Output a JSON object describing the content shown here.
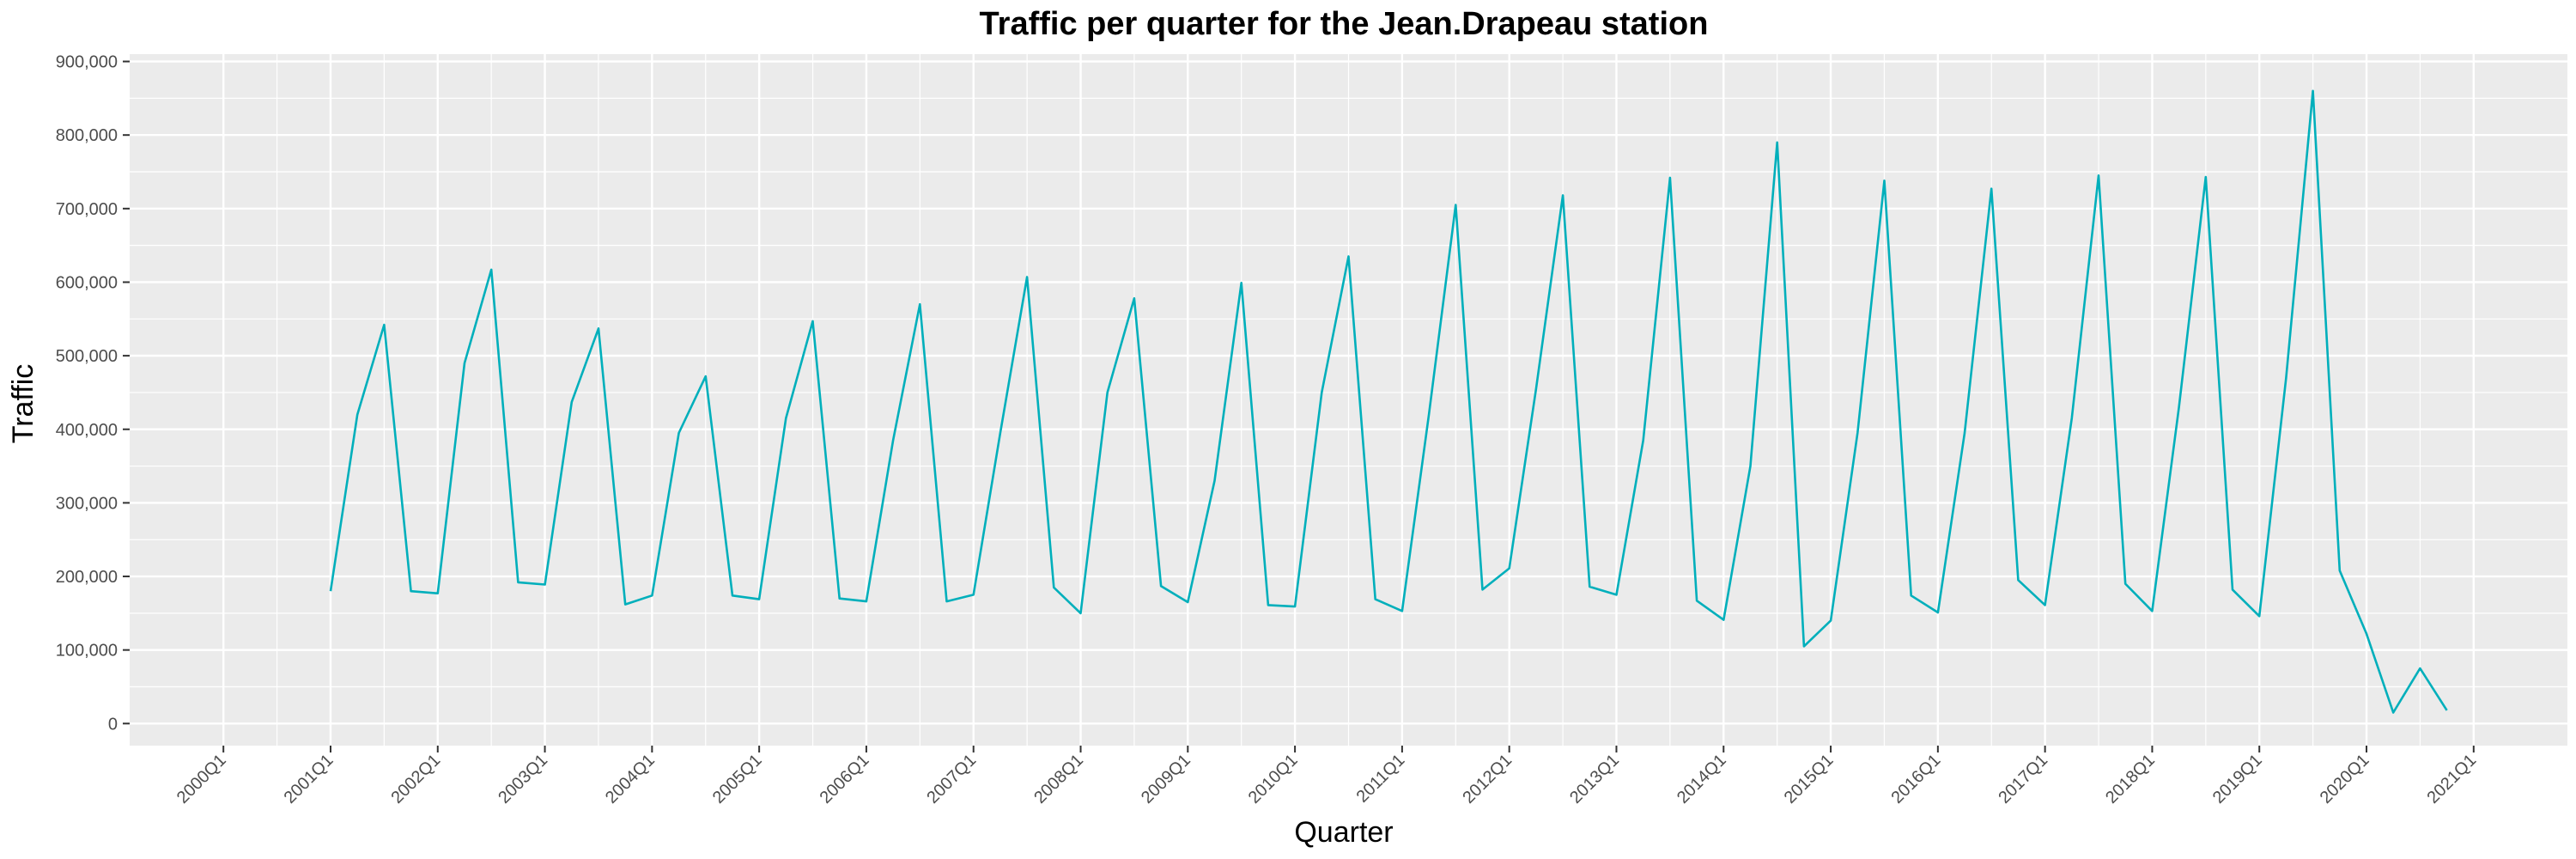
{
  "chart_data": {
    "type": "line",
    "title": "Traffic per quarter for the Jean.Drapeau station",
    "xlabel": "Quarter",
    "ylabel": "Traffic",
    "ylim": [
      -30000,
      910000
    ],
    "y_ticks": [
      0,
      100000,
      200000,
      300000,
      400000,
      500000,
      600000,
      700000,
      800000,
      900000
    ],
    "y_tick_labels": [
      "0",
      "100,000",
      "200,000",
      "300,000",
      "400,000",
      "500,000",
      "600,000",
      "700,000",
      "800,000",
      "900,000"
    ],
    "x_tick_labels": [
      "2000Q1",
      "2001Q1",
      "2002Q1",
      "2003Q1",
      "2004Q1",
      "2005Q1",
      "2006Q1",
      "2007Q1",
      "2008Q1",
      "2009Q1",
      "2010Q1",
      "2011Q1",
      "2012Q1",
      "2013Q1",
      "2014Q1",
      "2015Q1",
      "2016Q1",
      "2017Q1",
      "2018Q1",
      "2019Q1",
      "2020Q1",
      "2021Q1"
    ],
    "grid": true,
    "series_color": "#00AFBB",
    "panel_background": "#EBEBEB",
    "grid_color": "#FFFFFF",
    "series": [
      {
        "x": [
          "2001Q1",
          "2001Q2",
          "2001Q3",
          "2001Q4",
          "2002Q1",
          "2002Q2",
          "2002Q3",
          "2002Q4",
          "2003Q1",
          "2003Q2",
          "2003Q3",
          "2003Q4",
          "2004Q1",
          "2004Q2",
          "2004Q3",
          "2004Q4",
          "2005Q1",
          "2005Q2",
          "2005Q3",
          "2005Q4",
          "2006Q1",
          "2006Q2",
          "2006Q3",
          "2006Q4",
          "2007Q1",
          "2007Q2",
          "2007Q3",
          "2007Q4",
          "2008Q1",
          "2008Q2",
          "2008Q3",
          "2008Q4",
          "2009Q1",
          "2009Q2",
          "2009Q3",
          "2009Q4",
          "2010Q1",
          "2010Q2",
          "2010Q3",
          "2010Q4",
          "2011Q1",
          "2011Q2",
          "2011Q3",
          "2011Q4",
          "2012Q1",
          "2012Q2",
          "2012Q3",
          "2012Q4",
          "2013Q1",
          "2013Q2",
          "2013Q3",
          "2013Q4",
          "2014Q1",
          "2014Q2",
          "2014Q3",
          "2014Q4",
          "2015Q1",
          "2015Q2",
          "2015Q3",
          "2015Q4",
          "2016Q1",
          "2016Q2",
          "2016Q3",
          "2016Q4",
          "2017Q1",
          "2017Q2",
          "2017Q3",
          "2017Q4",
          "2018Q1",
          "2018Q2",
          "2018Q3",
          "2018Q4",
          "2019Q1",
          "2019Q2",
          "2019Q3",
          "2019Q4",
          "2020Q1",
          "2020Q2",
          "2020Q3",
          "2020Q4"
        ],
        "values": [
          180000,
          420000,
          542000,
          180000,
          177000,
          490000,
          617000,
          192000,
          189000,
          437000,
          537000,
          162000,
          174000,
          395000,
          472000,
          174000,
          169000,
          415000,
          547000,
          170000,
          166000,
          385000,
          570000,
          166000,
          175000,
          395000,
          607000,
          185000,
          150000,
          450000,
          578000,
          187000,
          165000,
          330000,
          599000,
          161000,
          159000,
          450000,
          635000,
          169000,
          153000,
          420000,
          705000,
          182000,
          211000,
          455000,
          718000,
          186000,
          175000,
          385000,
          742000,
          167000,
          141000,
          350000,
          790000,
          105000,
          140000,
          395000,
          738000,
          174000,
          151000,
          395000,
          727000,
          195000,
          161000,
          415000,
          745000,
          190000,
          153000,
          430000,
          743000,
          182000,
          146000,
          470000,
          860000,
          208000,
          122000,
          15000,
          75000,
          18000
        ]
      }
    ]
  }
}
